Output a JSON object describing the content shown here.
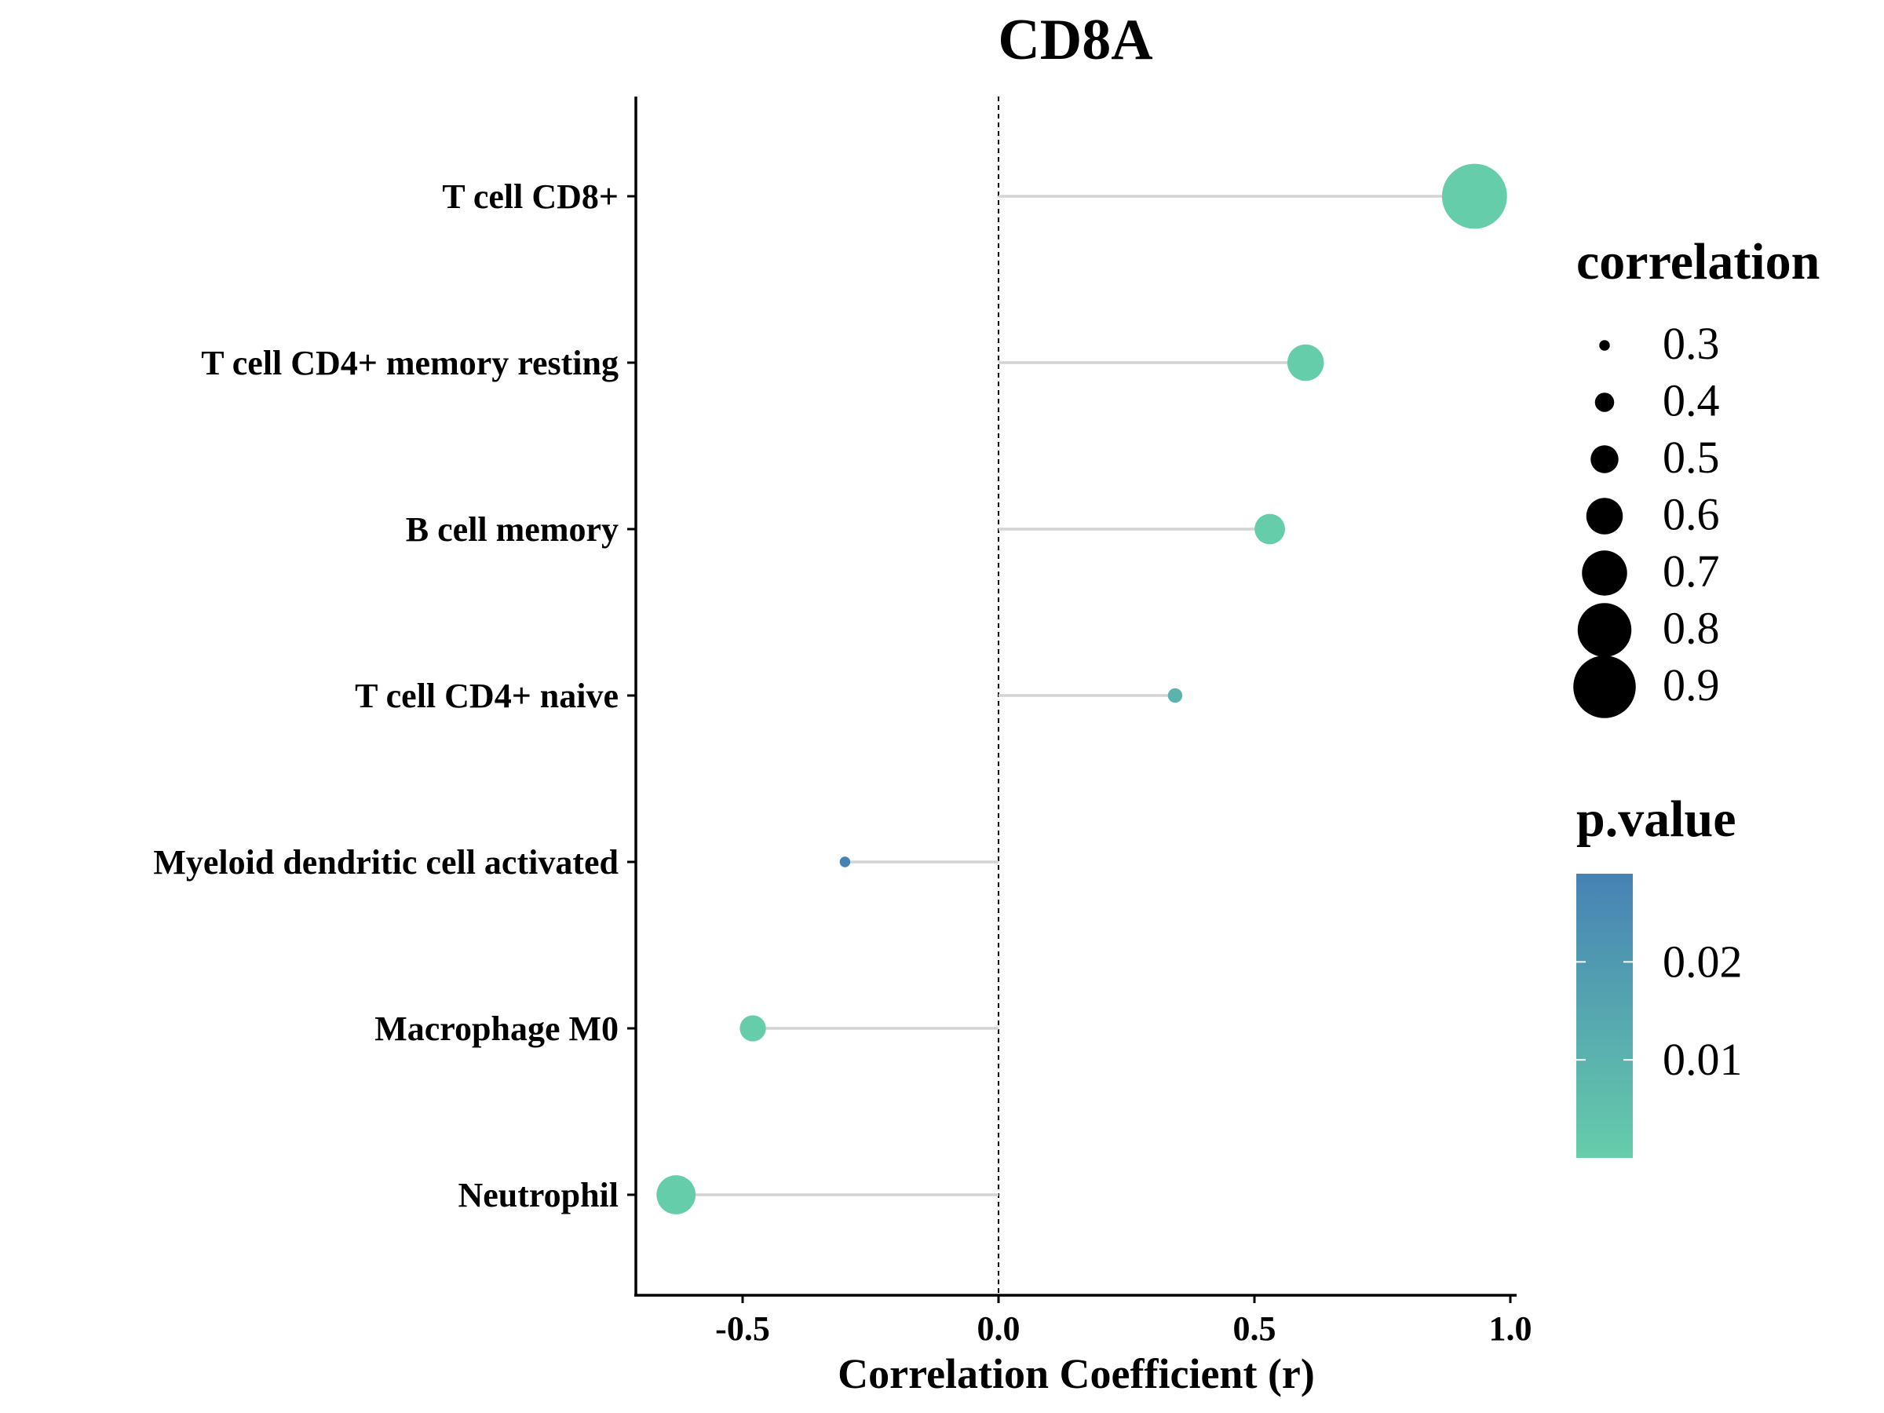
{
  "chart_data": {
    "type": "lollipop",
    "title": "CD8A",
    "xlabel": "Correlation Coefficient (r)",
    "ylabel": "",
    "xlim": [
      -0.715,
      1.0
    ],
    "x_ticks": [
      -0.5,
      0.0,
      0.5,
      1.0
    ],
    "x_tick_labels": [
      "-0.5",
      "0.0",
      "0.5",
      "1.0"
    ],
    "reference_line": 0.0,
    "categories": [
      "T cell CD8+",
      "T cell CD4+ memory resting",
      "B cell memory",
      "T cell CD4+ naive",
      "Myeloid dendritic cell activated",
      "Macrophage M0",
      "Neutrophil"
    ],
    "values": [
      0.93,
      0.6,
      0.53,
      0.345,
      -0.3,
      -0.48,
      -0.63
    ],
    "p_values": [
      0.0,
      0.0,
      0.0,
      0.01,
      0.029,
      0.0,
      0.0
    ],
    "legend_size": {
      "title": "correlation",
      "values": [
        0.3,
        0.4,
        0.5,
        0.6,
        0.7,
        0.8,
        0.9
      ],
      "labels": [
        "0.3",
        "0.4",
        "0.5",
        "0.6",
        "0.7",
        "0.8",
        "0.9"
      ]
    },
    "legend_color": {
      "title": "p.value",
      "range": [
        0.0,
        0.029
      ],
      "ticks": [
        0.02,
        0.01
      ],
      "tick_labels": [
        "0.02",
        "0.01"
      ],
      "low_color": "#66CDAA",
      "high_color": "#4682B4"
    },
    "grid": false,
    "legend_position": "right",
    "segment_color": "#D3D3D3"
  }
}
